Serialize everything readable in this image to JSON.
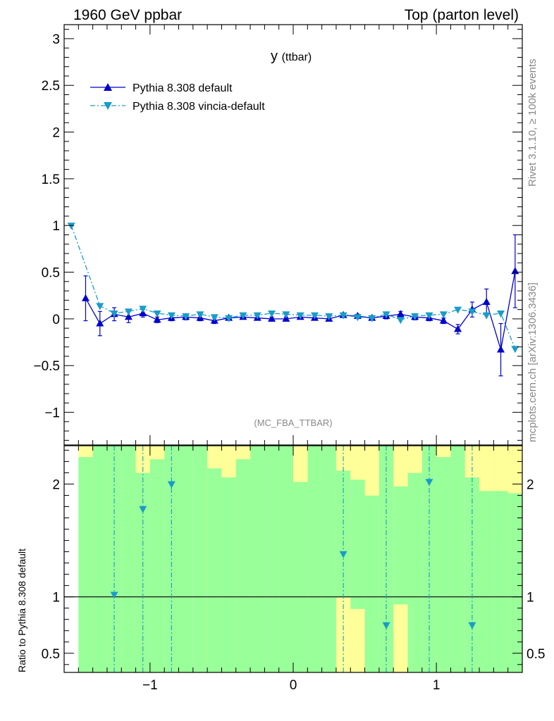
{
  "header": {
    "left": "1960 GeV ppbar",
    "right": "Top (parton level)"
  },
  "side_labels": {
    "rivet": "Rivet 3.1.10, ≥ 100k events",
    "mcplots": "mcplots.cern.ch [arXiv:1306.3436]"
  },
  "analysis_tag": "(MC_FBA_TTBAR)",
  "colors": {
    "default": "#0000cc",
    "vincia": "#1a9cc8",
    "band_green": "#99ff99",
    "band_yellow": "#ffff99"
  },
  "chart_data": [
    {
      "type": "line",
      "title": "y",
      "title_sub": "(ttbar)",
      "xlim": [
        -1.6,
        1.6
      ],
      "ylim": [
        -1.35,
        3.15
      ],
      "x_ticks": [
        -1,
        0,
        1
      ],
      "y_ticks": [
        -1,
        -0.5,
        0,
        0.5,
        1,
        1.5,
        2,
        2.5,
        3
      ],
      "legend_position": "top-left",
      "series": [
        {
          "name": "Pythia 8.308 default",
          "marker": "triangle-up",
          "line": "solid",
          "x": [
            -1.45,
            -1.35,
            -1.25,
            -1.15,
            -1.05,
            -0.95,
            -0.85,
            -0.75,
            -0.65,
            -0.55,
            -0.45,
            -0.35,
            -0.25,
            -0.15,
            -0.05,
            0.05,
            0.15,
            0.25,
            0.35,
            0.45,
            0.55,
            0.65,
            0.75,
            0.85,
            0.95,
            1.05,
            1.15,
            1.25,
            1.35,
            1.45,
            1.55
          ],
          "y": [
            0.22,
            -0.05,
            0.05,
            0.02,
            0.06,
            -0.01,
            0.01,
            0.02,
            0.01,
            -0.02,
            0.01,
            0.02,
            0.01,
            0.0,
            0.0,
            0.02,
            0.01,
            0.0,
            0.04,
            0.03,
            0.01,
            0.03,
            0.05,
            0.02,
            0.01,
            -0.02,
            -0.11,
            0.1,
            0.18,
            -0.33,
            0.51
          ],
          "err": [
            0.24,
            0.13,
            0.07,
            0.06,
            0.04,
            0.03,
            0.03,
            0.03,
            0.03,
            0.03,
            0.02,
            0.02,
            0.02,
            0.02,
            0.02,
            0.02,
            0.02,
            0.02,
            0.02,
            0.02,
            0.02,
            0.03,
            0.03,
            0.03,
            0.03,
            0.03,
            0.05,
            0.08,
            0.14,
            0.28,
            0.39
          ]
        },
        {
          "name": "Pythia 8.308 vincia-default",
          "marker": "triangle-down",
          "line": "dash-dot",
          "x": [
            -1.55,
            -1.35,
            -1.25,
            -1.15,
            -1.05,
            -0.95,
            -0.85,
            -0.75,
            -0.65,
            -0.55,
            -0.45,
            -0.35,
            -0.25,
            -0.15,
            -0.05,
            0.05,
            0.15,
            0.25,
            0.35,
            0.45,
            0.55,
            0.65,
            0.75,
            0.85,
            0.95,
            1.05,
            1.15,
            1.25,
            1.35,
            1.45,
            1.55
          ],
          "y": [
            1.0,
            0.14,
            0.06,
            0.08,
            0.11,
            0.06,
            0.04,
            0.03,
            0.05,
            0.02,
            0.01,
            0.04,
            0.04,
            0.06,
            0.05,
            0.04,
            0.04,
            0.03,
            0.04,
            0.02,
            0.01,
            0.05,
            -0.01,
            0.03,
            0.04,
            0.05,
            0.1,
            0.08,
            0.04,
            0.06,
            -0.32
          ]
        }
      ]
    },
    {
      "type": "line",
      "ylabel": "Ratio to Pythia 8.308 default",
      "xlim": [
        -1.6,
        1.6
      ],
      "ylim": [
        0.33,
        2.34
      ],
      "x_ticks": [
        -1,
        0,
        1
      ],
      "y_ticks": [
        0.5,
        1,
        2
      ],
      "reference_line": 1,
      "series": [
        {
          "name": "Pythia 8.308 vincia-default",
          "marker": "triangle-down",
          "line": "dash-dot",
          "x": [
            -1.25,
            -1.05,
            -0.85,
            0.35,
            0.65,
            0.95,
            1.25
          ],
          "y": [
            1.02,
            1.78,
            2.0,
            1.38,
            0.75,
            2.02,
            0.75
          ]
        }
      ]
    }
  ]
}
